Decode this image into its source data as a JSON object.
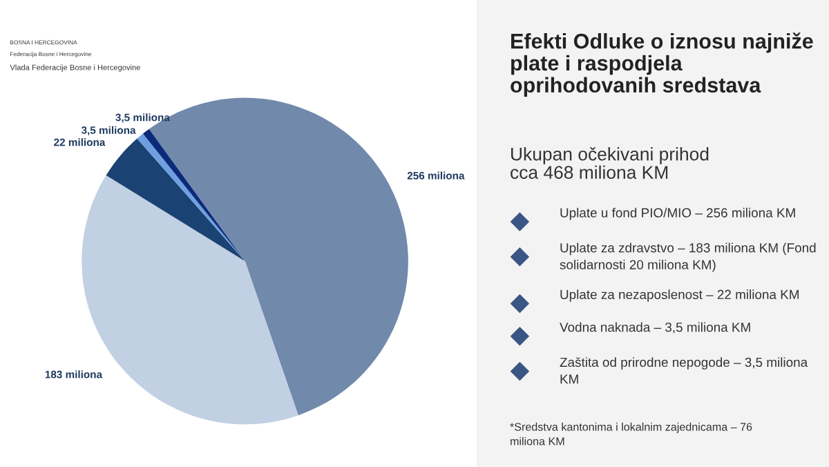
{
  "chart_data": {
    "type": "pie",
    "title": "Efekti Odluke o iznosu najniže\nplate i raspodjela\noprihodovanih sredstava",
    "subtitle": "Ukupan očekivani prihod\ncca 468 miliona KM",
    "categories": [
      null,
      null,
      null,
      null,
      null
    ],
    "values": [
      256,
      183,
      22,
      3.5,
      3.5
    ],
    "value_labels": [
      "256 miliona",
      "183 miliona",
      "22 miliona",
      "3,5 miliona",
      "3,5 miliona"
    ],
    "colors": [
      "#7189ab",
      "#c1d0e3",
      "#1a4373",
      "#6f9fe0",
      "#0c2a7a"
    ],
    "annotations": [
      "BOSNA I HERCEGOVINA",
      "Federacija Bosne i Hercegovine",
      "Vlada Federacije Bosne i Hercegovine",
      "Uplate u fond PIO/MIO – 256 miliona KM",
      "Uplate za zdravstvo – 183 miliona KM (Fond\nsolidarnosti 20 miliona KM)",
      "Uplate za nezaposlenost – 22 miliona KM",
      "Vodna naknada – 3,5 miliona KM",
      "Zaštita od prirodne nepogode – 3,5 miliona\nKM",
      "*Sredstva kantonima i lokalnim zajednicama – 76\nmiliona KM"
    ]
  }
}
